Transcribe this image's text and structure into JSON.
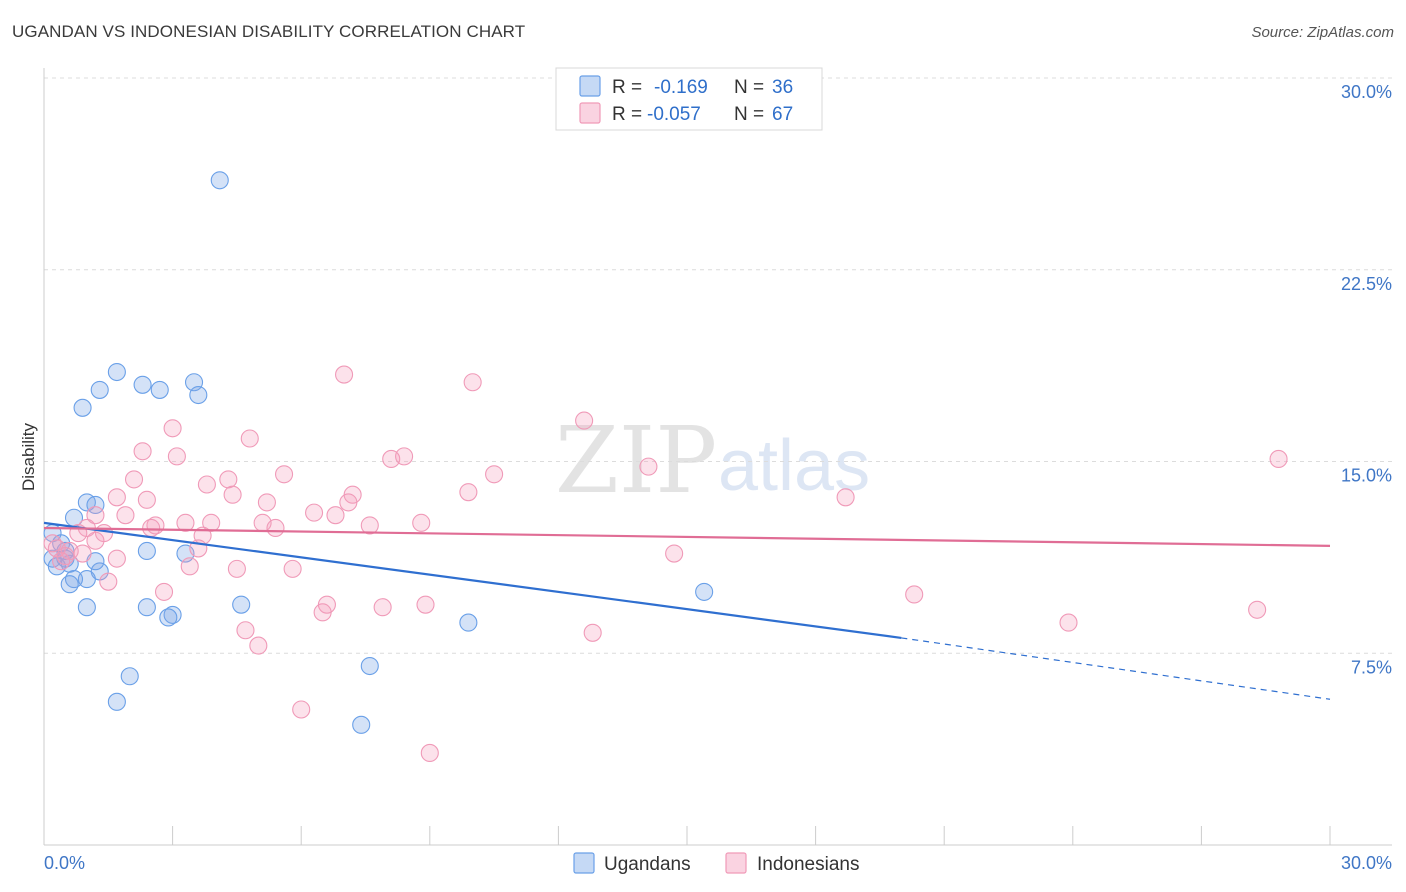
{
  "title": "UGANDAN VS INDONESIAN DISABILITY CORRELATION CHART",
  "source": "Source: ZipAtlas.com",
  "watermark": {
    "zip": "ZIP",
    "atlas": "atlas"
  },
  "legend_top": {
    "rows": [
      {
        "r_label": "R =",
        "r_value": "-0.169",
        "n_label": "N =",
        "n_value": "36",
        "color": "#6aa0e8"
      },
      {
        "r_label": "R =",
        "r_value": "-0.057",
        "n_label": "N =",
        "n_value": "67",
        "color": "#f09ab8"
      }
    ]
  },
  "legend_bottom": [
    {
      "label": "Ugandans",
      "color": "#6aa0e8"
    },
    {
      "label": "Indonesians",
      "color": "#f09ab8"
    }
  ],
  "chart_data": {
    "type": "scatter",
    "title": "UGANDAN VS INDONESIAN DISABILITY CORRELATION CHART",
    "xlabel": "",
    "ylabel": "Disability",
    "xlim": [
      0,
      30
    ],
    "ylim": [
      0,
      30
    ],
    "x_tick_labels": [
      "0.0%",
      "30.0%"
    ],
    "y_ticks": [
      7.5,
      15.0,
      22.5,
      30.0
    ],
    "y_tick_labels": [
      "7.5%",
      "15.0%",
      "22.5%",
      "30.0%"
    ],
    "grid": "horizontal dashed",
    "legend": "top-center",
    "series": [
      {
        "name": "Ugandans",
        "color": "#6aa0e8",
        "line_color": "#2f6fd0",
        "trend": {
          "x0": 0,
          "y0": 12.6,
          "x1": 20.0,
          "y1": 8.1,
          "dash_to_x": 30,
          "dash_to_y": 5.7
        },
        "points": [
          [
            4.1,
            26.0
          ],
          [
            1.7,
            18.5
          ],
          [
            2.3,
            18.0
          ],
          [
            3.5,
            18.1
          ],
          [
            1.3,
            17.8
          ],
          [
            2.7,
            17.8
          ],
          [
            3.6,
            17.6
          ],
          [
            0.9,
            17.1
          ],
          [
            1.0,
            13.4
          ],
          [
            1.2,
            13.3
          ],
          [
            0.7,
            12.8
          ],
          [
            0.2,
            12.2
          ],
          [
            0.4,
            11.8
          ],
          [
            2.4,
            11.5
          ],
          [
            3.3,
            11.4
          ],
          [
            0.2,
            11.2
          ],
          [
            0.5,
            11.2
          ],
          [
            0.6,
            11.0
          ],
          [
            0.3,
            10.9
          ],
          [
            1.3,
            10.7
          ],
          [
            1.0,
            10.4
          ],
          [
            0.7,
            10.4
          ],
          [
            0.6,
            10.2
          ],
          [
            4.6,
            9.4
          ],
          [
            1.0,
            9.3
          ],
          [
            2.4,
            9.3
          ],
          [
            3.0,
            9.0
          ],
          [
            2.9,
            8.9
          ],
          [
            15.4,
            9.9
          ],
          [
            9.9,
            8.7
          ],
          [
            2.0,
            6.6
          ],
          [
            1.7,
            5.6
          ],
          [
            7.6,
            7.0
          ],
          [
            7.4,
            4.7
          ],
          [
            0.5,
            11.5
          ],
          [
            1.2,
            11.1
          ]
        ]
      },
      {
        "name": "Indonesians",
        "color": "#f09ab8",
        "line_color": "#e06d95",
        "trend": {
          "x0": 0,
          "y0": 12.4,
          "x1": 30,
          "y1": 11.7
        },
        "points": [
          [
            7.0,
            18.4
          ],
          [
            10.0,
            18.1
          ],
          [
            12.6,
            16.6
          ],
          [
            3.0,
            16.3
          ],
          [
            4.8,
            15.9
          ],
          [
            2.3,
            15.4
          ],
          [
            3.1,
            15.2
          ],
          [
            8.1,
            15.1
          ],
          [
            8.4,
            15.2
          ],
          [
            28.8,
            15.1
          ],
          [
            14.1,
            14.8
          ],
          [
            5.6,
            14.5
          ],
          [
            10.5,
            14.5
          ],
          [
            2.1,
            14.3
          ],
          [
            4.3,
            14.3
          ],
          [
            3.8,
            14.1
          ],
          [
            9.9,
            13.8
          ],
          [
            7.2,
            13.7
          ],
          [
            4.4,
            13.7
          ],
          [
            1.7,
            13.6
          ],
          [
            2.4,
            13.5
          ],
          [
            5.2,
            13.4
          ],
          [
            7.1,
            13.4
          ],
          [
            18.7,
            13.6
          ],
          [
            1.2,
            12.9
          ],
          [
            1.9,
            12.9
          ],
          [
            6.3,
            13.0
          ],
          [
            6.8,
            12.9
          ],
          [
            2.6,
            12.5
          ],
          [
            3.3,
            12.6
          ],
          [
            3.9,
            12.6
          ],
          [
            5.1,
            12.6
          ],
          [
            7.6,
            12.5
          ],
          [
            8.8,
            12.6
          ],
          [
            5.4,
            12.4
          ],
          [
            1.0,
            12.4
          ],
          [
            1.4,
            12.2
          ],
          [
            0.8,
            12.2
          ],
          [
            1.2,
            11.9
          ],
          [
            3.7,
            12.1
          ],
          [
            0.3,
            11.6
          ],
          [
            0.6,
            11.5
          ],
          [
            0.9,
            11.4
          ],
          [
            0.5,
            11.3
          ],
          [
            1.7,
            11.2
          ],
          [
            3.6,
            11.6
          ],
          [
            14.7,
            11.4
          ],
          [
            3.4,
            10.9
          ],
          [
            4.5,
            10.8
          ],
          [
            5.8,
            10.8
          ],
          [
            1.5,
            10.3
          ],
          [
            2.8,
            9.9
          ],
          [
            20.3,
            9.8
          ],
          [
            6.6,
            9.4
          ],
          [
            7.9,
            9.3
          ],
          [
            8.9,
            9.4
          ],
          [
            6.5,
            9.1
          ],
          [
            28.3,
            9.2
          ],
          [
            23.9,
            8.7
          ],
          [
            12.8,
            8.3
          ],
          [
            4.7,
            8.4
          ],
          [
            5.0,
            7.8
          ],
          [
            6.0,
            5.3
          ],
          [
            9.0,
            3.6
          ],
          [
            0.2,
            11.8
          ],
          [
            0.4,
            11.1
          ],
          [
            2.5,
            12.4
          ]
        ]
      }
    ]
  }
}
